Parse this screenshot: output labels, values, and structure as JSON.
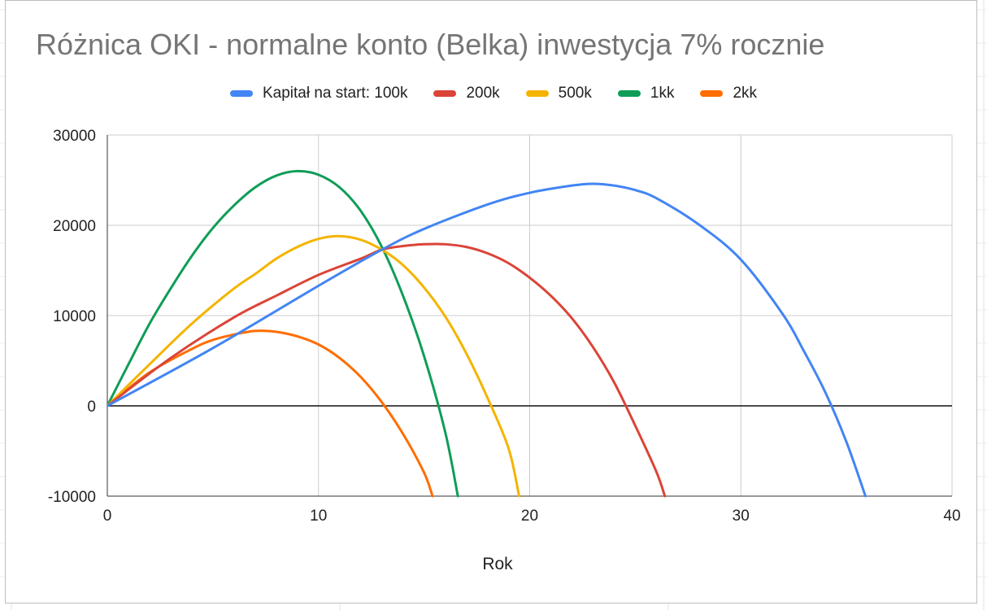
{
  "chart_data": {
    "type": "line",
    "title": "Różnica OKI - normalne konto (Belka) inwestycja 7% rocznie",
    "xlabel": "Rok",
    "ylabel": "",
    "xlim": [
      0,
      40
    ],
    "ylim": [
      -10000,
      30000
    ],
    "x_ticks": [
      0,
      10,
      20,
      30,
      40
    ],
    "y_ticks": [
      -10000,
      0,
      10000,
      20000,
      30000
    ],
    "x_tick_labels": [
      "0",
      "10",
      "20",
      "30",
      "40"
    ],
    "y_tick_labels": [
      "-10000",
      "0",
      "10000",
      "20000",
      "30000"
    ],
    "grid": true,
    "legend_position": "top",
    "series": [
      {
        "name": "Kapitał na start: 100k",
        "color": "#4285F4",
        "points": [
          [
            0,
            0
          ],
          [
            5,
            6400
          ],
          [
            10,
            13300
          ],
          [
            13,
            17300
          ],
          [
            15,
            19600
          ],
          [
            18,
            22300
          ],
          [
            20,
            23600
          ],
          [
            22,
            24400
          ],
          [
            23,
            24600
          ],
          [
            24,
            24400
          ],
          [
            25,
            23900
          ],
          [
            26,
            23000
          ],
          [
            28,
            20100
          ],
          [
            30,
            16200
          ],
          [
            32,
            10100
          ],
          [
            33,
            6000
          ],
          [
            34,
            1500
          ],
          [
            35,
            -4000
          ],
          [
            35.9,
            -10000
          ]
        ]
      },
      {
        "name": "200k",
        "color": "#DB4437",
        "points": [
          [
            0,
            0
          ],
          [
            3,
            5300
          ],
          [
            6,
            9800
          ],
          [
            8,
            12200
          ],
          [
            10,
            14500
          ],
          [
            12,
            16300
          ],
          [
            13,
            17300
          ],
          [
            14,
            17700
          ],
          [
            15,
            17900
          ],
          [
            16,
            17900
          ],
          [
            17,
            17600
          ],
          [
            18,
            16900
          ],
          [
            19,
            15800
          ],
          [
            20,
            14200
          ],
          [
            21,
            12200
          ],
          [
            22,
            9700
          ],
          [
            23,
            6500
          ],
          [
            24,
            2600
          ],
          [
            25,
            -2200
          ],
          [
            26,
            -7300
          ],
          [
            26.4,
            -10000
          ]
        ]
      },
      {
        "name": "500k",
        "color": "#F4B400",
        "points": [
          [
            0,
            0
          ],
          [
            2,
            4600
          ],
          [
            4,
            9100
          ],
          [
            6,
            13000
          ],
          [
            7,
            14600
          ],
          [
            8,
            16300
          ],
          [
            9,
            17600
          ],
          [
            10,
            18500
          ],
          [
            11,
            18800
          ],
          [
            12,
            18400
          ],
          [
            13,
            17300
          ],
          [
            14,
            15600
          ],
          [
            15,
            13100
          ],
          [
            16,
            9900
          ],
          [
            17,
            5800
          ],
          [
            18,
            900
          ],
          [
            19,
            -4700
          ],
          [
            19.5,
            -10000
          ]
        ]
      },
      {
        "name": "1kk",
        "color": "#0F9D58",
        "points": [
          [
            0,
            0
          ],
          [
            1,
            4600
          ],
          [
            2,
            9100
          ],
          [
            3,
            13000
          ],
          [
            4,
            16600
          ],
          [
            5,
            19700
          ],
          [
            6,
            22200
          ],
          [
            7,
            24200
          ],
          [
            8,
            25500
          ],
          [
            9,
            26000
          ],
          [
            10,
            25600
          ],
          [
            11,
            24200
          ],
          [
            12,
            21600
          ],
          [
            13,
            17600
          ],
          [
            14,
            12200
          ],
          [
            15,
            5500
          ],
          [
            16,
            -2900
          ],
          [
            16.6,
            -10000
          ]
        ]
      },
      {
        "name": "2kk",
        "color": "#FF6D00",
        "points": [
          [
            0,
            0
          ],
          [
            2,
            3700
          ],
          [
            4,
            6300
          ],
          [
            5,
            7300
          ],
          [
            6,
            7900
          ],
          [
            7,
            8300
          ],
          [
            8,
            8200
          ],
          [
            9,
            7700
          ],
          [
            10,
            6800
          ],
          [
            11,
            5300
          ],
          [
            12,
            3200
          ],
          [
            13,
            400
          ],
          [
            14,
            -3100
          ],
          [
            15,
            -7400
          ],
          [
            15.4,
            -10000
          ]
        ]
      }
    ]
  }
}
